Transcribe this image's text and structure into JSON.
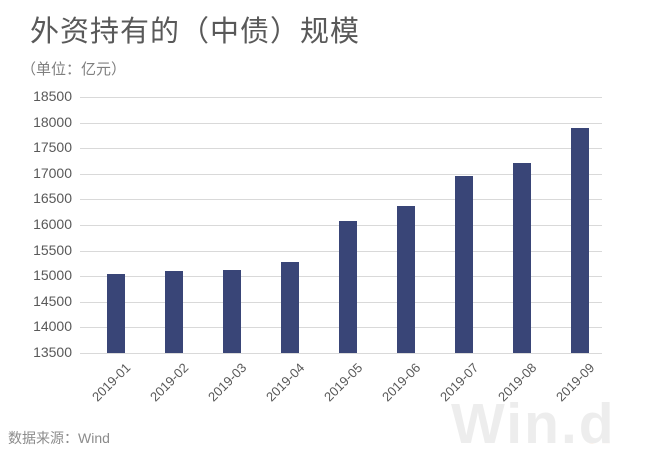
{
  "chart": {
    "title": "外资持有的（中债）规模",
    "unit": "（单位：亿元）"
  },
  "chart_data": {
    "type": "bar",
    "title": "外资持有的（中债）规模",
    "subtitle": "（单位：亿元）",
    "categories": [
      "2019-01",
      "2019-02",
      "2019-03",
      "2019-04",
      "2019-05",
      "2019-06",
      "2019-07",
      "2019-08",
      "2019-09"
    ],
    "values": [
      15050,
      15110,
      15130,
      15270,
      16070,
      16380,
      16950,
      17210,
      17890
    ],
    "xlabel": "",
    "ylabel": "亿元",
    "ylim": [
      13500,
      18500
    ],
    "ytick_step": 500,
    "grid": true,
    "legend": "none",
    "bar_color": "#394577",
    "gridline_color": "#d9d9d9",
    "axis_label_color": "#595959"
  },
  "footer": {
    "source": "数据来源：Wind"
  },
  "watermark": {
    "text": "Win.d"
  }
}
